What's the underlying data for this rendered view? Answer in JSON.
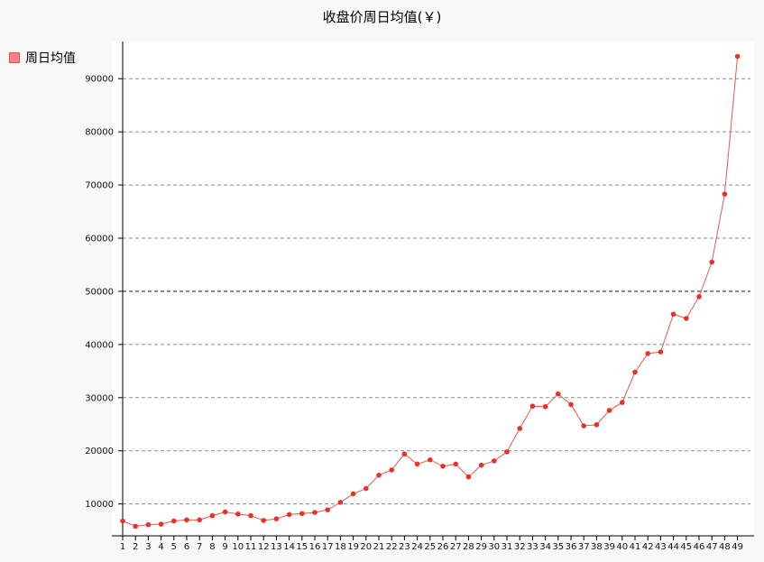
{
  "chart_data": {
    "type": "line",
    "title": "收盘价周日均值(￥)",
    "legend": {
      "label": "周日均值",
      "placement": "top-left"
    },
    "xlabel": "",
    "ylabel": "",
    "x": [
      1,
      2,
      3,
      4,
      5,
      6,
      7,
      8,
      9,
      10,
      11,
      12,
      13,
      14,
      15,
      16,
      17,
      18,
      19,
      20,
      21,
      22,
      23,
      24,
      25,
      26,
      27,
      28,
      29,
      30,
      31,
      32,
      33,
      34,
      35,
      36,
      37,
      38,
      39,
      40,
      41,
      42,
      43,
      44,
      45,
      46,
      47,
      48,
      49
    ],
    "x_tick_labels": [
      "1",
      "2",
      "3",
      "4",
      "5",
      "6",
      "7",
      "8",
      "9",
      "10",
      "11",
      "12",
      "13",
      "14",
      "15",
      "16",
      "17",
      "18",
      "19",
      "20",
      "21",
      "22",
      "23",
      "24",
      "25",
      "26",
      "27",
      "28",
      "29",
      "30",
      "31",
      "32",
      "33",
      "34",
      "35",
      "36",
      "37",
      "38",
      "39",
      "40",
      "41",
      "42",
      "43",
      "44",
      "45",
      "46",
      "47",
      "48",
      "49"
    ],
    "series": [
      {
        "name": "周日均值",
        "values": [
          6800,
          5800,
          6100,
          6200,
          6800,
          7000,
          7000,
          7800,
          8500,
          8100,
          7800,
          6900,
          7200,
          8000,
          8200,
          8400,
          8900,
          10300,
          11900,
          12900,
          15400,
          16400,
          19400,
          17500,
          18300,
          17100,
          17500,
          15100,
          17300,
          18100,
          19800,
          24200,
          28400,
          28300,
          30700,
          28700,
          24700,
          24900,
          27600,
          29100,
          34800,
          38300,
          38600,
          45700,
          44900,
          49000,
          55500,
          68300,
          94200
        ]
      }
    ],
    "ylim": [
      4000,
      97000
    ],
    "y_ticks": [
      10000,
      20000,
      30000,
      40000,
      50000,
      60000,
      70000,
      80000,
      90000
    ],
    "y_tick_labels": [
      "10000",
      "20000",
      "30000",
      "40000",
      "50000",
      "60000",
      "70000",
      "80000",
      "90000"
    ],
    "grid": "horizontal-dashed",
    "colors": {
      "line": "#e8584a",
      "point": "#e6332a",
      "legend": "#ff7f7f"
    }
  }
}
